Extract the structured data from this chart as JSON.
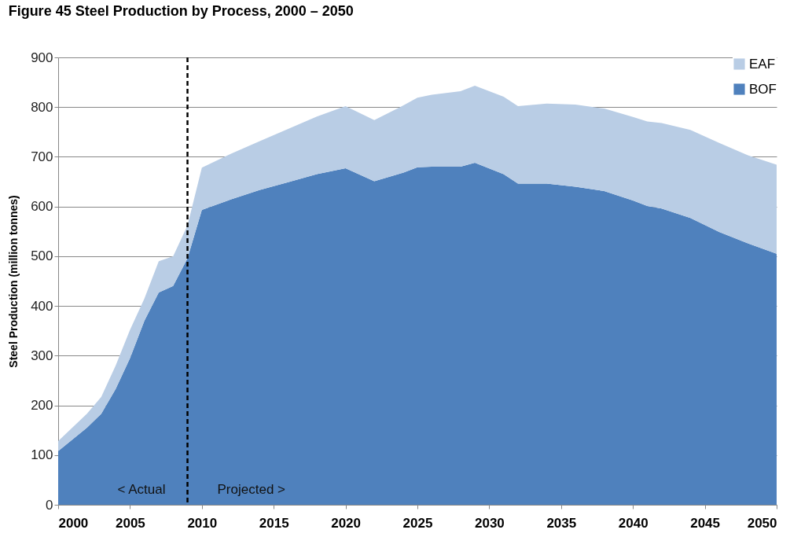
{
  "chart_data": {
    "type": "area",
    "title": "Figure 45 Steel Production by Process, 2000 – 2050",
    "ylabel": "Steel Production (million tonnes)",
    "x": [
      2000,
      2002,
      2003,
      2004,
      2005,
      2006,
      2007,
      2008,
      2009,
      2010,
      2012,
      2014,
      2016,
      2018,
      2020,
      2022,
      2024,
      2025,
      2026,
      2028,
      2029,
      2031,
      2032,
      2034,
      2036,
      2038,
      2040,
      2041,
      2042,
      2044,
      2046,
      2048,
      2050
    ],
    "series": [
      {
        "name": "BOF",
        "color": "#4f81bd",
        "values": [
          108,
          155,
          183,
          233,
          295,
          370,
          427,
          440,
          496,
          593,
          614,
          633,
          649,
          665,
          677,
          651,
          668,
          679,
          680,
          680,
          688,
          665,
          646,
          646,
          640,
          631,
          612,
          601,
          596,
          577,
          549,
          526,
          505
        ]
      },
      {
        "name": "EAF",
        "color": "#b9cde5",
        "values": [
          20,
          28,
          34,
          47,
          57,
          45,
          63,
          60,
          66,
          85,
          92,
          98,
          107,
          116,
          125,
          123,
          135,
          140,
          145,
          152,
          155,
          156,
          156,
          161,
          165,
          166,
          168,
          170,
          172,
          177,
          179,
          177,
          179
        ]
      }
    ],
    "stacked": true,
    "xlim": [
      2000,
      2050
    ],
    "xticks": [
      2000,
      2005,
      2010,
      2015,
      2020,
      2025,
      2030,
      2035,
      2040,
      2045,
      2050
    ],
    "ylim": [
      0,
      900
    ],
    "yticks": [
      0,
      100,
      200,
      300,
      400,
      500,
      600,
      700,
      800,
      900
    ],
    "grid": "y",
    "legend": "top right",
    "ref_lines": [
      {
        "axis": "x",
        "value": 2009,
        "color": "#000000",
        "line_style": "dashed"
      }
    ],
    "annotations": [
      "< Actual",
      "Projected >"
    ]
  }
}
